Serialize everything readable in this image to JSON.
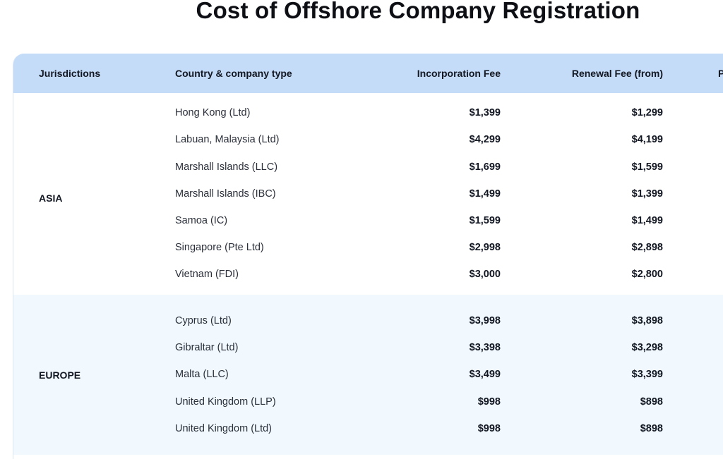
{
  "title": "Cost of Offshore Company Registration",
  "table": {
    "headers": {
      "jurisdictions": "Jurisdictions",
      "country": "Country & company type",
      "incorporation": "Incorporation Fee",
      "renewal": "Renewal Fee (from)",
      "extra": "P"
    },
    "groups": [
      {
        "region": "ASIA",
        "rows": [
          {
            "country": "Hong Kong (Ltd)",
            "incorporation": "$1,399",
            "renewal": "$1,299"
          },
          {
            "country": "Labuan, Malaysia (Ltd)",
            "incorporation": "$4,299",
            "renewal": "$4,199"
          },
          {
            "country": "Marshall Islands (LLC)",
            "incorporation": "$1,699",
            "renewal": "$1,599"
          },
          {
            "country": "Marshall Islands (IBC)",
            "incorporation": "$1,499",
            "renewal": "$1,399"
          },
          {
            "country": "Samoa (IC)",
            "incorporation": "$1,599",
            "renewal": "$1,499"
          },
          {
            "country": "Singapore (Pte Ltd)",
            "incorporation": "$2,998",
            "renewal": "$2,898"
          },
          {
            "country": "Vietnam (FDI)",
            "incorporation": "$3,000",
            "renewal": "$2,800"
          }
        ]
      },
      {
        "region": "EUROPE",
        "rows": [
          {
            "country": "Cyprus (Ltd)",
            "incorporation": "$3,998",
            "renewal": "$3,898"
          },
          {
            "country": "Gibraltar (Ltd)",
            "incorporation": "$3,398",
            "renewal": "$3,298"
          },
          {
            "country": "Malta (LLC)",
            "incorporation": "$3,499",
            "renewal": "$3,399"
          },
          {
            "country": "United Kingdom (LLP)",
            "incorporation": "$998",
            "renewal": "$898"
          },
          {
            "country": "United Kingdom (Ltd)",
            "incorporation": "$998",
            "renewal": "$898"
          }
        ]
      }
    ]
  }
}
